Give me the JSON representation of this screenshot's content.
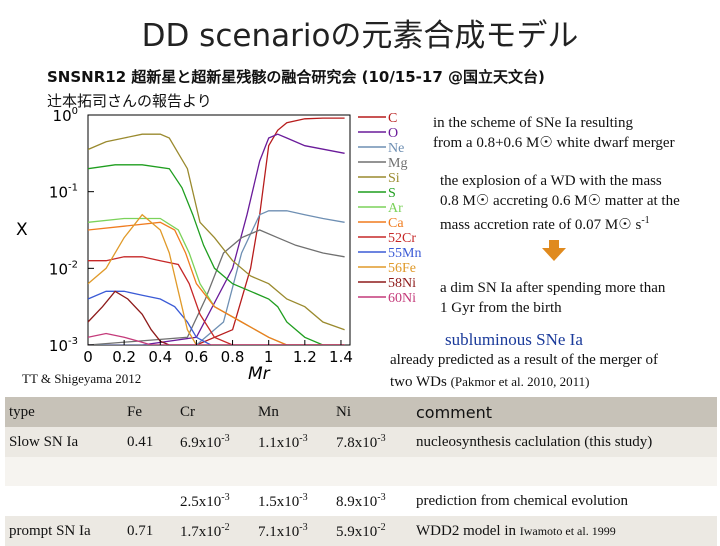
{
  "title": "DD scenarioの元素合成モデル",
  "workshop": "SNSNR12 超新星と超新星残骸の融合研究会 (10/15-17 @国立天文台)",
  "credit": "辻本拓司さんの報告より",
  "notes": {
    "scheme_line1": "in the scheme of SNe Ia resulting",
    "scheme_line2": "from a 0.8+0.6 M☉ white dwarf merger",
    "explosion_line1": "the explosion of a WD with the mass",
    "explosion_line2": "0.8 M☉ accreting 0.6 M☉ matter at the",
    "explosion_line3_prefix": "mass accretion rate of 0.07 M☉ s",
    "explosion_line3_exp": "-1",
    "dim_line1": "a dim SN Ia after spending more than",
    "dim_line2": "1 Gyr from the birth",
    "subluminous": "subluminous SNe Ia",
    "merger_line1": "already predicted as a result of the merger of",
    "merger_line2": "two WDs",
    "merger_ref": "(Pakmor et al. 2010, 2011)",
    "plot_credit": "TT & Shigeyama 2012"
  },
  "colors": {
    "arrow": "#e08a1e",
    "subluminous": "#1a3a9a",
    "header_bg": "#c7c2b8"
  },
  "chart_data": {
    "type": "line",
    "title": "",
    "xlabel": "Mr",
    "ylabel": "X",
    "xlim": [
      0,
      1.45
    ],
    "ylim_log10": [
      -3,
      0
    ],
    "xticks": [
      "0",
      "0.2",
      "0.4",
      "0.6",
      "0.8",
      "1",
      "1.2",
      "1.4"
    ],
    "yticks": [
      "10^0",
      "10^-1",
      "10^-2",
      "10^-3"
    ],
    "legend": [
      "C",
      "O",
      "Ne",
      "Mg",
      "Si",
      "S",
      "Ar",
      "Ca",
      "52Cr",
      "55Mn",
      "56Fe",
      "58Ni",
      "60Ni"
    ],
    "series": [
      {
        "name": "C",
        "color": "#b71c1c",
        "x": [
          0,
          0.3,
          0.6,
          0.8,
          0.9,
          0.95,
          1.0,
          1.05,
          1.1,
          1.2,
          1.3,
          1.42
        ],
        "logy": [
          -3.0,
          -3.0,
          -3.0,
          -2.8,
          -2.0,
          -1.3,
          -0.4,
          -0.2,
          -0.1,
          -0.05,
          -0.04,
          -0.04
        ]
      },
      {
        "name": "O",
        "color": "#6a1b9a",
        "x": [
          0,
          0.3,
          0.6,
          0.8,
          0.88,
          0.95,
          1.0,
          1.05,
          1.1,
          1.2,
          1.42
        ],
        "logy": [
          -3.0,
          -3.0,
          -2.9,
          -2.0,
          -1.3,
          -0.6,
          -0.3,
          -0.25,
          -0.3,
          -0.4,
          -0.5
        ]
      },
      {
        "name": "Ne",
        "color": "#6e8fb3",
        "x": [
          0,
          0.6,
          0.75,
          0.85,
          0.95,
          1.0,
          1.1,
          1.2,
          1.3,
          1.42
        ],
        "logy": [
          -3.0,
          -3.0,
          -2.7,
          -1.8,
          -1.3,
          -1.25,
          -1.25,
          -1.3,
          -1.35,
          -1.4
        ]
      },
      {
        "name": "Mg",
        "color": "#707070",
        "x": [
          0,
          0.55,
          0.65,
          0.75,
          0.85,
          0.95,
          1.05,
          1.15,
          1.3,
          1.42
        ],
        "logy": [
          -3.0,
          -2.9,
          -2.4,
          -1.8,
          -1.6,
          -1.5,
          -1.6,
          -1.7,
          -1.8,
          -1.85
        ]
      },
      {
        "name": "Si",
        "color": "#9a8a2e",
        "x": [
          0,
          0.1,
          0.2,
          0.3,
          0.4,
          0.45,
          0.5,
          0.55,
          0.6,
          0.62,
          0.7,
          0.8,
          0.9,
          1.0,
          1.1,
          1.2,
          1.3,
          1.42
        ],
        "logy": [
          -0.45,
          -0.35,
          -0.3,
          -0.25,
          -0.25,
          -0.3,
          -0.5,
          -0.7,
          -1.2,
          -1.4,
          -1.6,
          -1.9,
          -2.1,
          -2.2,
          -2.4,
          -2.5,
          -2.7,
          -2.8
        ]
      },
      {
        "name": "S",
        "color": "#1f9e1f",
        "x": [
          0,
          0.15,
          0.3,
          0.45,
          0.52,
          0.58,
          0.64,
          0.7,
          0.8,
          0.9,
          1.0,
          1.05,
          1.1,
          1.2,
          1.3,
          1.42
        ],
        "logy": [
          -0.7,
          -0.65,
          -0.65,
          -0.7,
          -0.95,
          -1.3,
          -1.7,
          -2.0,
          -2.2,
          -2.3,
          -2.4,
          -2.5,
          -2.7,
          -2.9,
          -3.0,
          -3.0
        ]
      },
      {
        "name": "Ar",
        "color": "#7bd25a",
        "x": [
          0,
          0.2,
          0.4,
          0.5,
          0.56,
          0.62,
          0.7,
          0.85,
          1.0,
          1.1,
          1.2,
          1.42
        ],
        "logy": [
          -1.4,
          -1.35,
          -1.35,
          -1.5,
          -1.8,
          -2.2,
          -2.5,
          -2.7,
          -2.9,
          -3.0,
          -3.0,
          -3.0
        ]
      },
      {
        "name": "Ca",
        "color": "#f07c1f",
        "x": [
          0,
          0.2,
          0.4,
          0.48,
          0.54,
          0.6,
          0.7,
          0.85,
          1.0,
          1.1,
          1.42
        ],
        "logy": [
          -1.5,
          -1.45,
          -1.4,
          -1.5,
          -1.8,
          -2.2,
          -2.5,
          -2.7,
          -2.9,
          -3.0,
          -3.0
        ]
      },
      {
        "name": "52Cr",
        "color": "#c62828",
        "x": [
          0,
          0.1,
          0.2,
          0.3,
          0.4,
          0.5,
          0.56,
          0.62,
          0.7,
          0.8,
          1.0,
          1.42
        ],
        "logy": [
          -1.9,
          -1.9,
          -1.85,
          -1.85,
          -1.9,
          -1.95,
          -2.2,
          -2.6,
          -2.9,
          -3.0,
          -3.0,
          -3.0
        ]
      },
      {
        "name": "55Mn",
        "color": "#3b5bd6",
        "x": [
          0,
          0.1,
          0.2,
          0.3,
          0.4,
          0.48,
          0.55,
          0.6,
          0.68,
          0.75,
          1.0,
          1.42
        ],
        "logy": [
          -2.4,
          -2.3,
          -2.3,
          -2.35,
          -2.4,
          -2.5,
          -2.7,
          -2.9,
          -3.0,
          -3.0,
          -3.0,
          -3.0
        ]
      },
      {
        "name": "56Fe",
        "color": "#e09a2a",
        "x": [
          0,
          0.1,
          0.2,
          0.3,
          0.4,
          0.45,
          0.5,
          0.55,
          0.6,
          0.7,
          0.8,
          1.0,
          1.42
        ],
        "logy": [
          -2.2,
          -2.0,
          -1.6,
          -1.3,
          -1.5,
          -1.8,
          -2.3,
          -2.8,
          -3.0,
          -3.0,
          -3.0,
          -3.0,
          -3.0
        ]
      },
      {
        "name": "58Ni",
        "color": "#8e1b1b",
        "x": [
          0,
          0.08,
          0.15,
          0.22,
          0.3,
          0.35,
          0.4,
          0.45,
          0.5,
          0.6,
          1.0,
          1.42
        ],
        "logy": [
          -2.7,
          -2.5,
          -2.3,
          -2.4,
          -2.6,
          -2.8,
          -2.95,
          -3.0,
          -3.0,
          -3.0,
          -3.0,
          -3.0
        ]
      },
      {
        "name": "60Ni",
        "color": "#c43a7a",
        "x": [
          0,
          0.1,
          0.2,
          0.28,
          0.35,
          0.4,
          0.45,
          0.5,
          1.0,
          1.42
        ],
        "logy": [
          -2.9,
          -2.85,
          -2.9,
          -2.95,
          -3.0,
          -3.0,
          -3.0,
          -3.0,
          -3.0,
          -3.0
        ]
      }
    ]
  },
  "table": {
    "headers": [
      "type",
      "Fe",
      "Cr",
      "Mn",
      "Ni",
      "comment"
    ],
    "rows": [
      {
        "type": "Slow SN Ia",
        "fe": "0.41",
        "cr_base": "6.9x10",
        "cr_exp": "-3",
        "mn_base": "1.1x10",
        "mn_exp": "-3",
        "ni_base": "7.8x10",
        "ni_exp": "-3",
        "comment": "nucleosynthesis caclulation (this study)"
      },
      {
        "type": "",
        "fe": "",
        "cr_base": "",
        "cr_exp": "",
        "mn_base": "",
        "mn_exp": "",
        "ni_base": "",
        "ni_exp": "",
        "comment": ""
      },
      {
        "type": "",
        "fe": "",
        "cr_base": "2.5x10",
        "cr_exp": "-3",
        "mn_base": "1.5x10",
        "mn_exp": "-3",
        "ni_base": "8.9x10",
        "ni_exp": "-3",
        "comment": "prediction from chemical evolution"
      },
      {
        "type": "prompt SN Ia",
        "fe": "0.71",
        "cr_base": "1.7x10",
        "cr_exp": "-2",
        "mn_base": "7.1x10",
        "mn_exp": "-3",
        "ni_base": "5.9x10",
        "ni_exp": "-2",
        "comment": "WDD2 model in",
        "comment_ref": "Iwamoto et al. 1999"
      }
    ]
  }
}
